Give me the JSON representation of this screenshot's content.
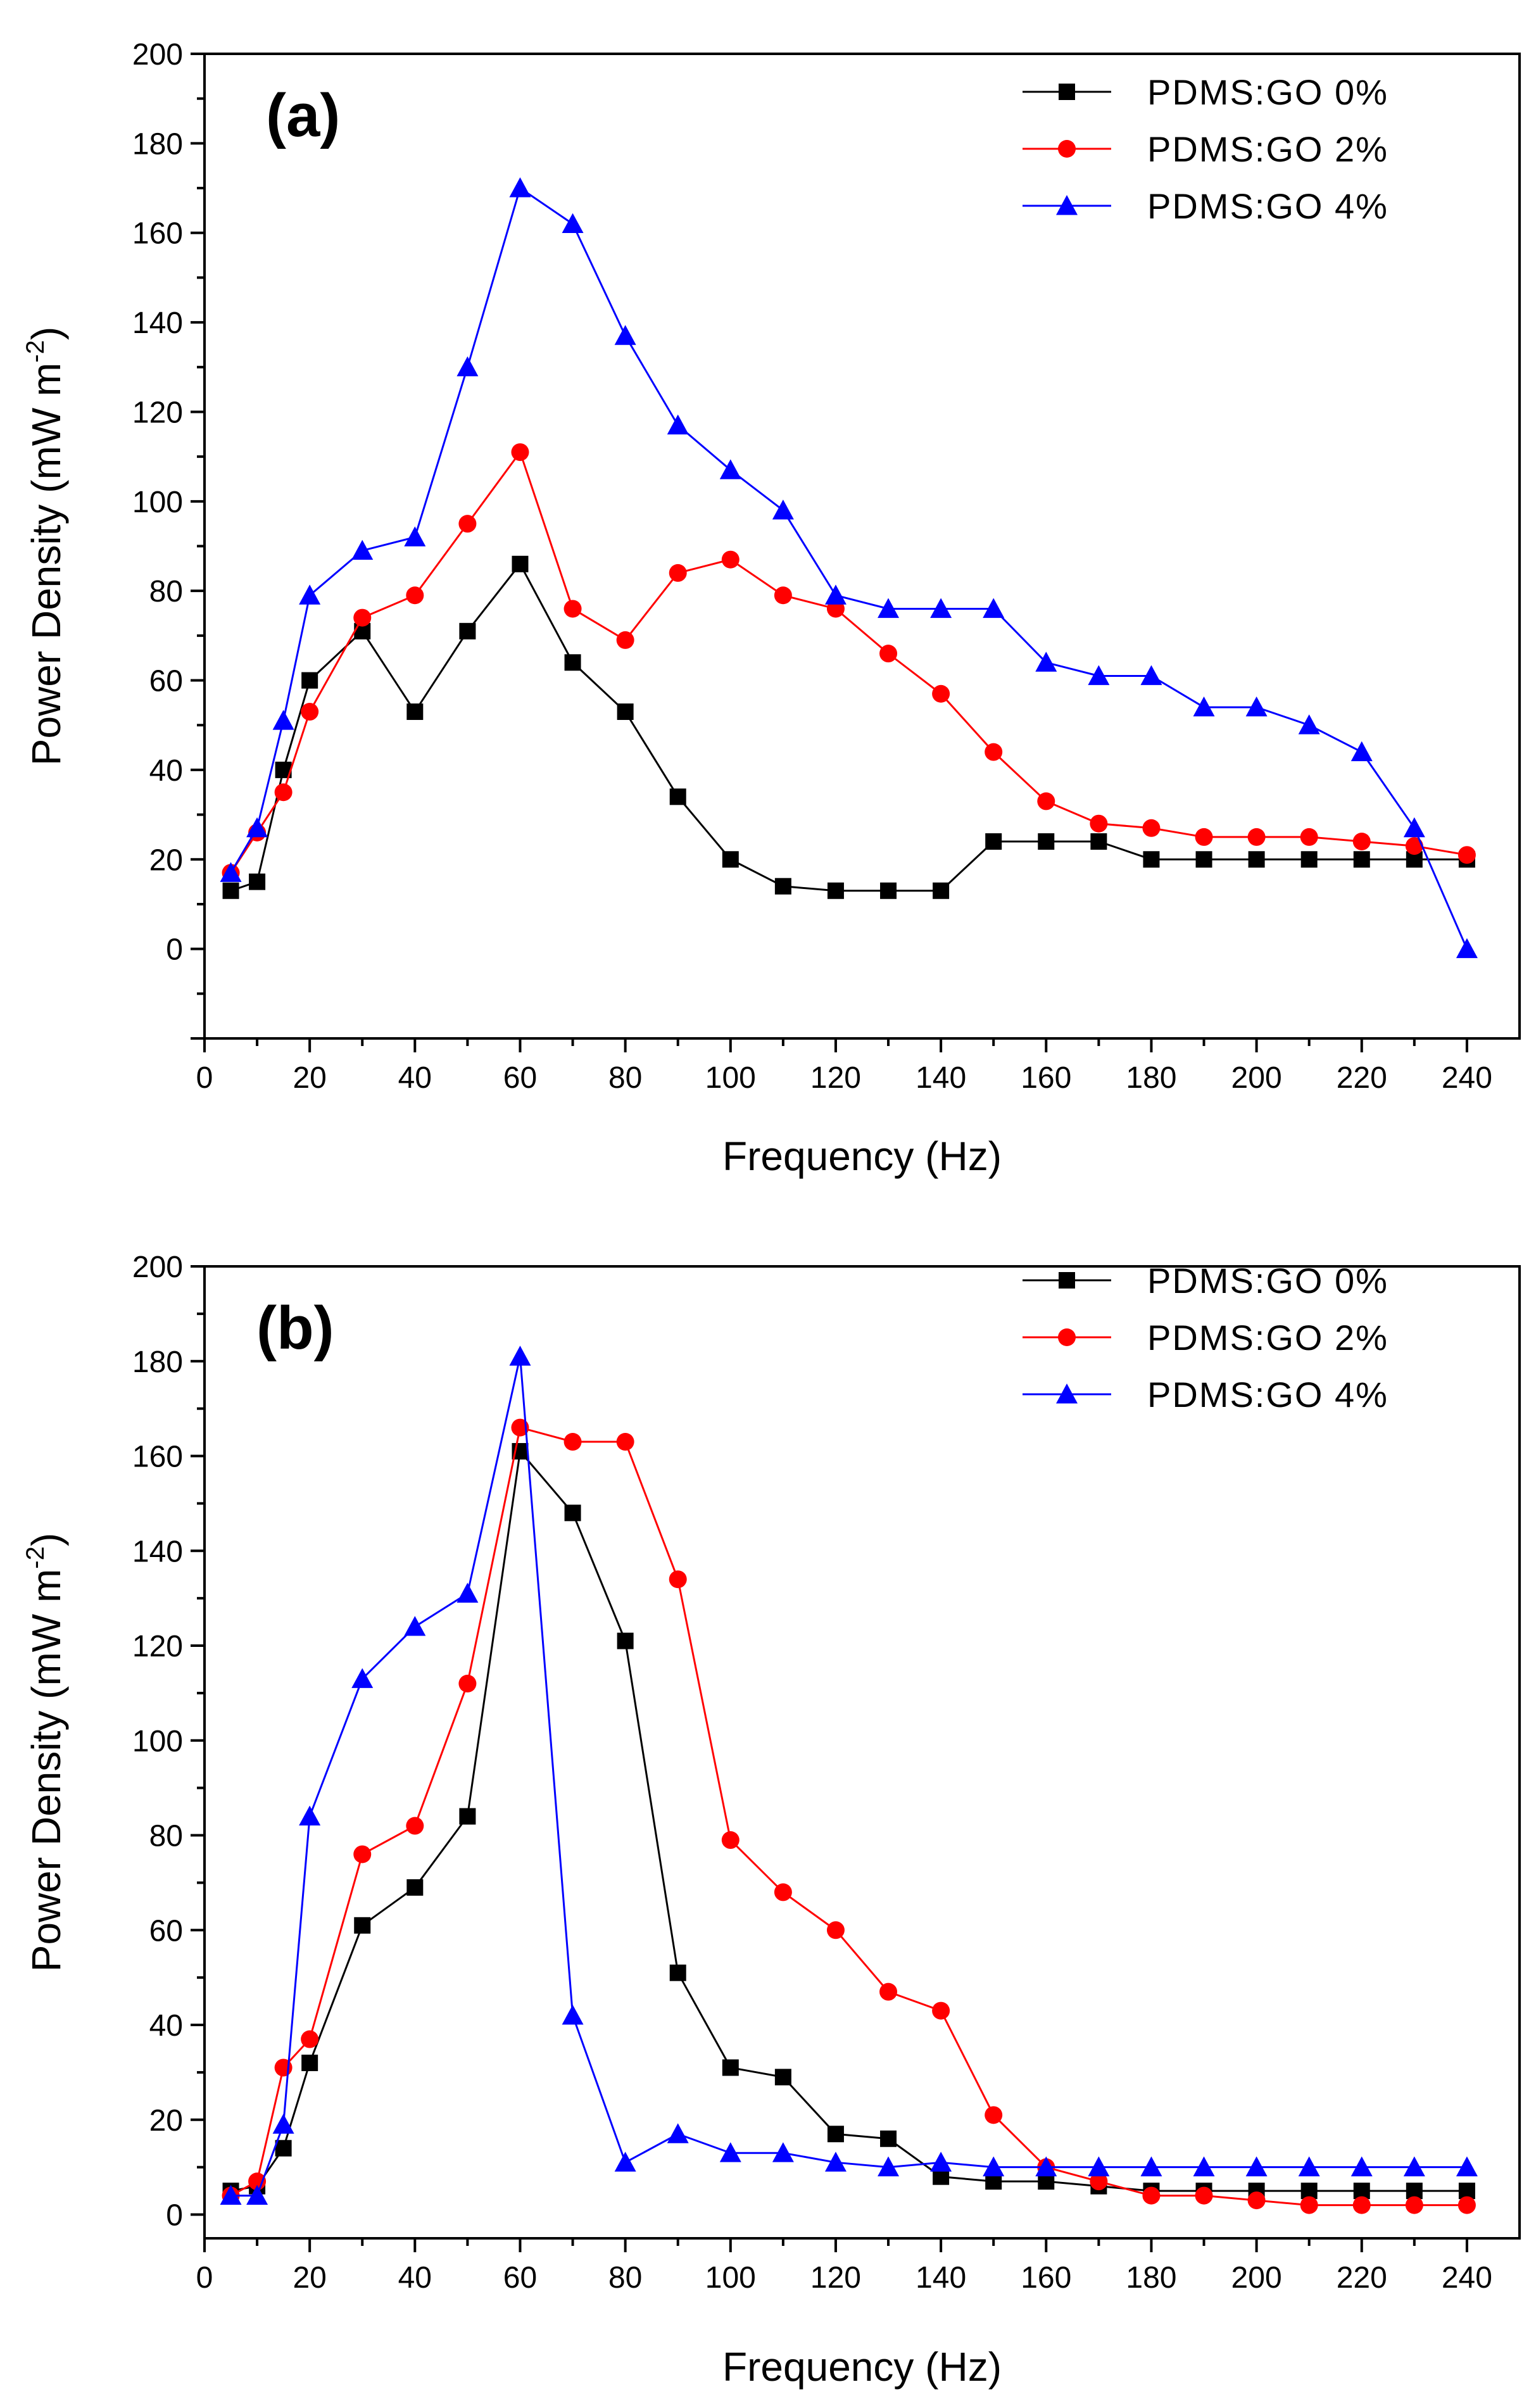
{
  "figure": {
    "panels": [
      "(a)",
      "(b)"
    ]
  },
  "chart_data": [
    {
      "panel": "(a)",
      "type": "line",
      "xlabel": "Frequency (Hz)",
      "ylabel_main": "Power Density (mW m",
      "ylabel_sup": "-2",
      "ylabel_end": ")",
      "xlim": [
        0,
        250
      ],
      "ylim": [
        -20,
        200
      ],
      "xticks": [
        0,
        20,
        40,
        60,
        80,
        100,
        120,
        140,
        160,
        180,
        200,
        220,
        240
      ],
      "yticks": [
        0,
        20,
        40,
        60,
        80,
        100,
        120,
        140,
        160,
        180,
        200
      ],
      "legend_position": "top-right",
      "x": [
        5,
        10,
        15,
        20,
        30,
        40,
        50,
        60,
        70,
        80,
        90,
        100,
        110,
        120,
        130,
        140,
        150,
        160,
        170,
        180,
        190,
        200,
        210,
        220,
        230,
        240
      ],
      "series": [
        {
          "name": "PDMS:GO 0%",
          "color": "#000000",
          "marker": "square",
          "values": [
            13,
            15,
            40,
            60,
            71,
            53,
            71,
            86,
            64,
            53,
            34,
            20,
            14,
            13,
            13,
            13,
            24,
            24,
            24,
            20,
            20,
            20,
            20,
            20,
            20,
            20
          ]
        },
        {
          "name": "PDMS:GO 2%",
          "color": "#ff0000",
          "marker": "circle",
          "values": [
            17,
            26,
            35,
            53,
            74,
            79,
            95,
            111,
            76,
            69,
            84,
            87,
            79,
            76,
            66,
            57,
            44,
            33,
            28,
            27,
            25,
            25,
            25,
            24,
            23,
            21
          ]
        },
        {
          "name": "PDMS:GO 4%",
          "color": "#0000ff",
          "marker": "triangle",
          "values": [
            17,
            27,
            51,
            79,
            89,
            92,
            130,
            170,
            162,
            137,
            117,
            107,
            98,
            79,
            76,
            76,
            76,
            64,
            61,
            61,
            54,
            54,
            50,
            44,
            27,
            0
          ]
        }
      ]
    },
    {
      "panel": "(b)",
      "type": "line",
      "xlabel": "Frequency (Hz)",
      "ylabel_main": "Power Density (mW m",
      "ylabel_sup": "-2",
      "ylabel_end": ")",
      "xlim": [
        0,
        250
      ],
      "ylim": [
        -5,
        200
      ],
      "xticks": [
        0,
        20,
        40,
        60,
        80,
        100,
        120,
        140,
        160,
        180,
        200,
        220,
        240
      ],
      "yticks": [
        0,
        20,
        40,
        60,
        80,
        100,
        120,
        140,
        160,
        180,
        200
      ],
      "legend_position": "top-right",
      "x": [
        5,
        10,
        15,
        20,
        30,
        40,
        50,
        60,
        70,
        80,
        90,
        100,
        110,
        120,
        130,
        140,
        150,
        160,
        170,
        180,
        190,
        200,
        210,
        220,
        230,
        240
      ],
      "series": [
        {
          "name": "PDMS:GO 0%",
          "color": "#000000",
          "marker": "square",
          "values": [
            5,
            6,
            14,
            32,
            61,
            69,
            84,
            161,
            148,
            121,
            51,
            31,
            29,
            17,
            16,
            8,
            7,
            7,
            6,
            5,
            5,
            5,
            5,
            5,
            5,
            5
          ]
        },
        {
          "name": "PDMS:GO 2%",
          "color": "#ff0000",
          "marker": "circle",
          "values": [
            4,
            7,
            31,
            37,
            76,
            82,
            112,
            166,
            163,
            163,
            134,
            79,
            68,
            60,
            47,
            43,
            21,
            10,
            7,
            4,
            4,
            3,
            2,
            2,
            2,
            2
          ]
        },
        {
          "name": "PDMS:GO 4%",
          "color": "#0000ff",
          "marker": "triangle",
          "values": [
            4,
            4,
            19,
            84,
            113,
            124,
            131,
            181,
            42,
            11,
            17,
            13,
            13,
            11,
            10,
            11,
            10,
            10,
            10,
            10,
            10,
            10,
            10,
            10,
            10,
            10
          ]
        }
      ]
    }
  ]
}
